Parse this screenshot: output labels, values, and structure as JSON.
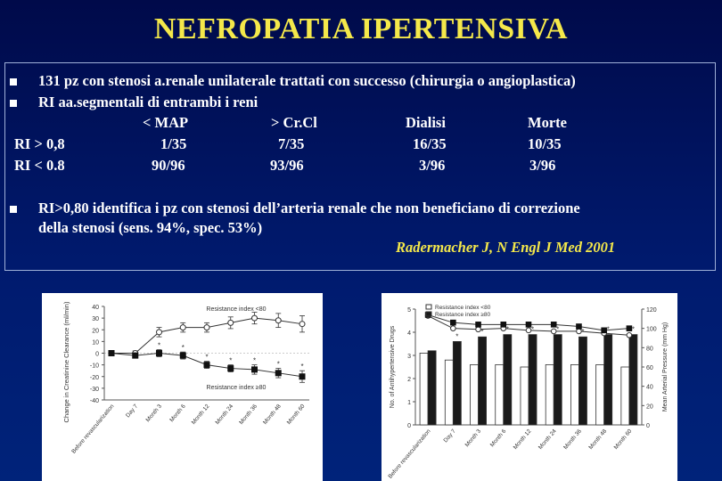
{
  "title": "NEFROPATIA IPERTENSIVA",
  "bullets": [
    "131 pz con stenosi a.renale unilaterale trattati con successo (chirurgia o angioplastica)",
    "RI aa.segmentali di entrambi i reni"
  ],
  "table": {
    "headers": [
      "",
      "< MAP",
      "> Cr.Cl",
      "Dialisi",
      "Morte"
    ],
    "rows": [
      [
        "RI > 0,8",
        "1/35",
        "7/35",
        "16/35",
        "10/35"
      ],
      [
        "RI < 0.8",
        "90/96",
        "93/96",
        "3/96",
        "3/96"
      ]
    ]
  },
  "finding": {
    "line1": "RI>0,80 identifica i pz con stenosi dell’arteria renale che non beneficiano di correzione",
    "line2": "della stenosi (sens. 94%, spec. 53%)"
  },
  "citation": "Radermacher J, N Engl J Med 2001",
  "colors": {
    "title": "#f4e84a",
    "citation": "#f4e84a",
    "background": "#001a6e",
    "bullet": "#ffffff"
  },
  "chart_data": [
    {
      "type": "line",
      "title": "",
      "ylabel": "Change in Creatinine Clearance (ml/min)",
      "xlabel": "",
      "categories": [
        "Before revascularization",
        "Day 7",
        "Month 3",
        "Month 6",
        "Month 12",
        "Month 24",
        "Month 36",
        "Month 48",
        "Month 60"
      ],
      "ylim": [
        -40,
        40
      ],
      "yticks": [
        40,
        30,
        20,
        10,
        0,
        -10,
        -20,
        -30,
        -40
      ],
      "series": [
        {
          "name": "Resistance index <80",
          "values": [
            0,
            0,
            18,
            22,
            22,
            26,
            30,
            28,
            25
          ],
          "errors": [
            0,
            2,
            4,
            4,
            4,
            5,
            5,
            6,
            7
          ]
        },
        {
          "name": "Resistance index ≥80",
          "values": [
            0,
            -2,
            0,
            -2,
            -10,
            -13,
            -14,
            -17,
            -20
          ],
          "errors": [
            0,
            1,
            3,
            3,
            3,
            3,
            4,
            4,
            5
          ]
        }
      ],
      "annotations": [
        "*",
        "*",
        "*",
        "*",
        "*",
        "*",
        "*"
      ],
      "grid": false
    },
    {
      "type": "bar",
      "title": "",
      "ylabel": "No. of Antihypertensive Drugs",
      "y2label": "Mean Arterial Pressure (mm Hg)",
      "categories": [
        "Before revascularization",
        "Day 7",
        "Month 3",
        "Month 6",
        "Month 12",
        "Month 24",
        "Month 36",
        "Month 48",
        "Month 60"
      ],
      "ylim": [
        0,
        5
      ],
      "yticks": [
        0,
        1,
        2,
        3,
        4,
        5
      ],
      "y2lim": [
        0,
        120
      ],
      "y2ticks": [
        0,
        20,
        40,
        60,
        80,
        100,
        120
      ],
      "series": [
        {
          "name": "Resistance index <80",
          "kind": "bar",
          "values": [
            3.1,
            2.8,
            2.6,
            2.6,
            2.5,
            2.6,
            2.6,
            2.6,
            2.5
          ]
        },
        {
          "name": "Resistance index ≥80",
          "kind": "bar",
          "values": [
            3.2,
            3.6,
            3.8,
            3.9,
            3.9,
            3.9,
            3.8,
            3.9,
            3.9
          ]
        },
        {
          "name": "Resistance index <80",
          "kind": "line",
          "axis": "right",
          "values": [
            113,
            100,
            99,
            100,
            98,
            97,
            97,
            95,
            93
          ]
        },
        {
          "name": "Resistance index ≥80",
          "kind": "line",
          "axis": "right",
          "values": [
            114,
            106,
            104,
            104,
            104,
            104,
            102,
            98,
            100
          ]
        }
      ],
      "annotations": [
        "*",
        "*",
        "*",
        "*",
        "*",
        "*",
        "*",
        "*"
      ],
      "grid": false
    }
  ]
}
